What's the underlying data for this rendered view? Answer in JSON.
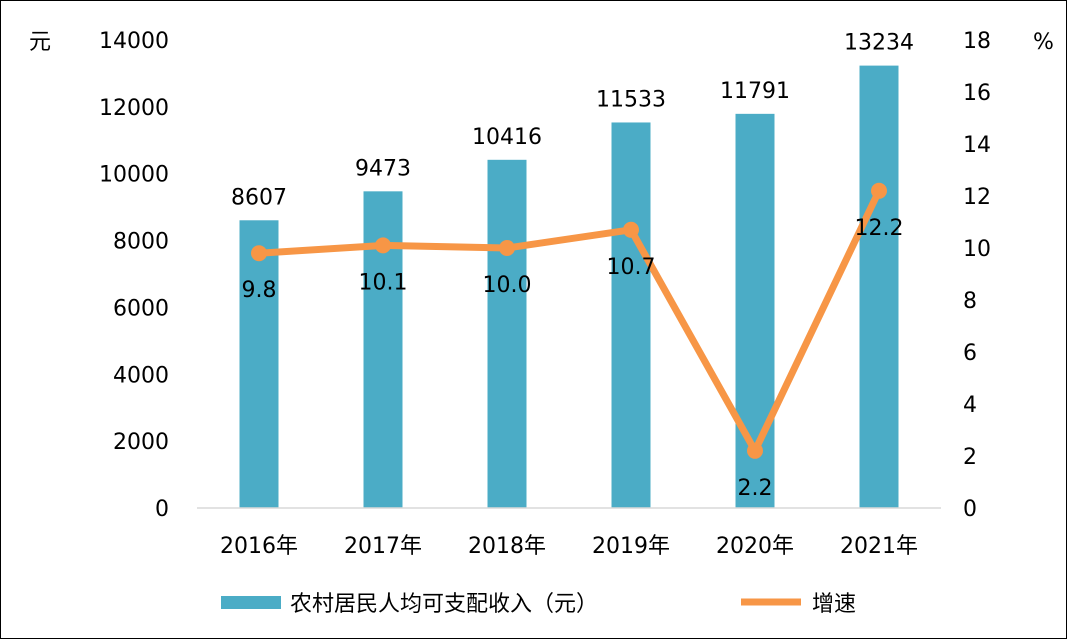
{
  "chart_data": {
    "type": "bar",
    "categories": [
      "2016年",
      "2017年",
      "2018年",
      "2019年",
      "2020年",
      "2021年"
    ],
    "series": [
      {
        "name": "农村居民人均可支配收入（元）",
        "type": "bar",
        "axis": "left",
        "values": [
          8607,
          9473,
          10416,
          11533,
          11791,
          13234
        ],
        "labels": [
          "8607",
          "9473",
          "10416",
          "11533",
          "11791",
          "13234"
        ],
        "color": "#4BACC6"
      },
      {
        "name": "增速",
        "type": "line",
        "axis": "right",
        "values": [
          9.8,
          10.1,
          10.0,
          10.7,
          2.2,
          12.2
        ],
        "labels": [
          "9.8",
          "10.1",
          "10.0",
          "10.7",
          "2.2",
          "12.2"
        ],
        "color": "#F79646"
      }
    ],
    "y_left": {
      "unit": "元",
      "ylim": [
        0,
        14000
      ],
      "ticks": [
        "0",
        "2000",
        "4000",
        "6000",
        "8000",
        "10000",
        "12000",
        "14000"
      ]
    },
    "y_right": {
      "unit": "%",
      "ylim": [
        0,
        18
      ],
      "ticks": [
        "0",
        "2",
        "4",
        "6",
        "8",
        "10",
        "12",
        "14",
        "16",
        "18"
      ]
    },
    "grid": false,
    "legend_position": "bottom"
  }
}
